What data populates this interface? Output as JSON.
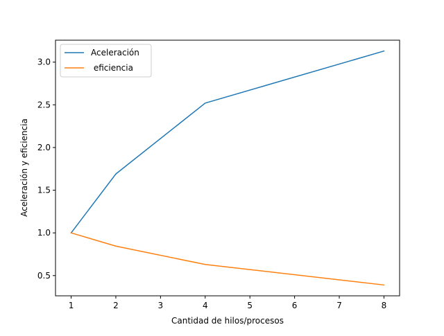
{
  "chart_data": {
    "type": "line",
    "title": "",
    "xlabel": "Cantidad de hilos/procesos",
    "ylabel": "Aceleración y eficiencia",
    "x": [
      1,
      2,
      4,
      8
    ],
    "series": [
      {
        "name": "Aceleración",
        "values": [
          1.0,
          1.69,
          2.52,
          3.13
        ],
        "color": "#1f77b4"
      },
      {
        "name": " eficiencia",
        "values": [
          1.0,
          0.845,
          0.63,
          0.39
        ],
        "color": "#ff7f0e"
      }
    ],
    "xlim": [
      0.65,
      8.35
    ],
    "ylim": [
      0.263,
      3.257
    ],
    "xticks": [
      1,
      2,
      3,
      4,
      5,
      6,
      7,
      8
    ],
    "xtick_labels": [
      "1",
      "2",
      "3",
      "4",
      "5",
      "6",
      "7",
      "8"
    ],
    "yticks": [
      0.5,
      1.0,
      1.5,
      2.0,
      2.5,
      3.0
    ],
    "ytick_labels": [
      "0.5",
      "1.0",
      "1.5",
      "2.0",
      "2.5",
      "3.0"
    ],
    "grid": false,
    "legend_position": "top-left"
  }
}
